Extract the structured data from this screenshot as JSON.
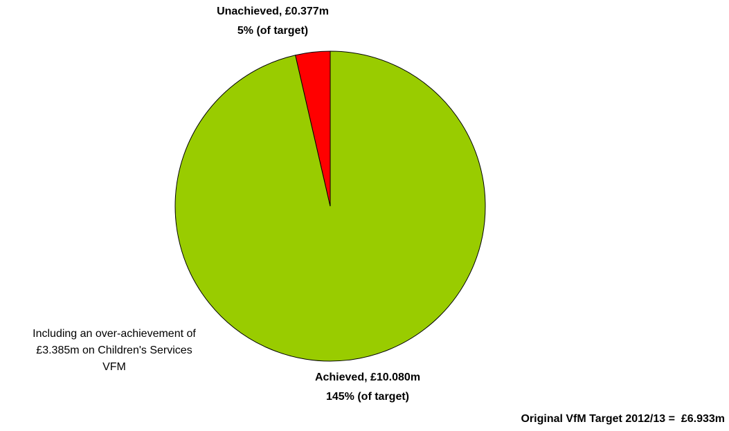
{
  "chart_data": {
    "type": "pie",
    "labels": [
      "Achieved, £10.080m",
      "Unachieved, £0.377m"
    ],
    "sublabels": [
      "145% (of target)",
      "5% (of target)"
    ],
    "values": [
      10.08,
      0.377
    ],
    "colors": [
      "#99cc00",
      "#ff0000"
    ],
    "annotation": [
      "Including an over-achievement of",
      "£3.385m on Children's Services",
      "VFM"
    ],
    "footnote": "Original VfM Target 2012/13 =  £6.933m"
  }
}
